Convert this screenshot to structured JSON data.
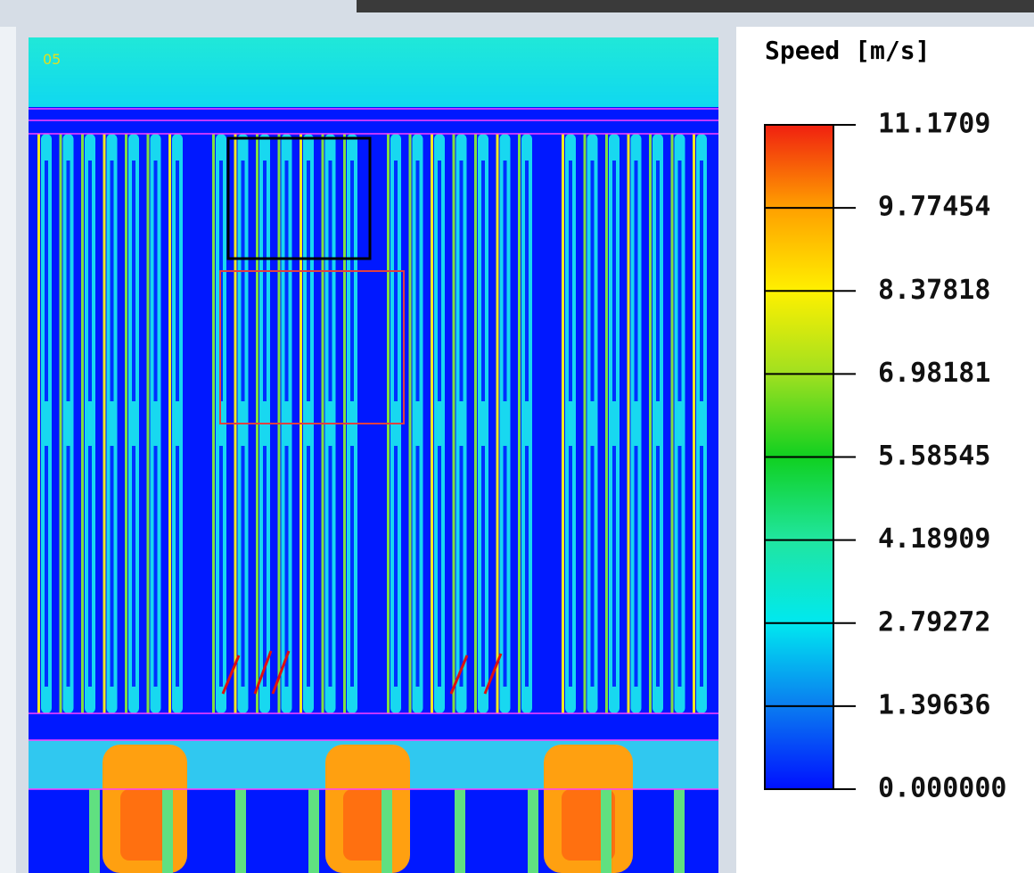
{
  "plot": {
    "label": "05"
  },
  "legend": {
    "title": "Speed [m/s]",
    "ticks": [
      "11.1709",
      "9.77454",
      "8.37818",
      "6.98181",
      "5.58545",
      "4.18909",
      "2.79272",
      "1.39636",
      "0.000000"
    ]
  }
}
